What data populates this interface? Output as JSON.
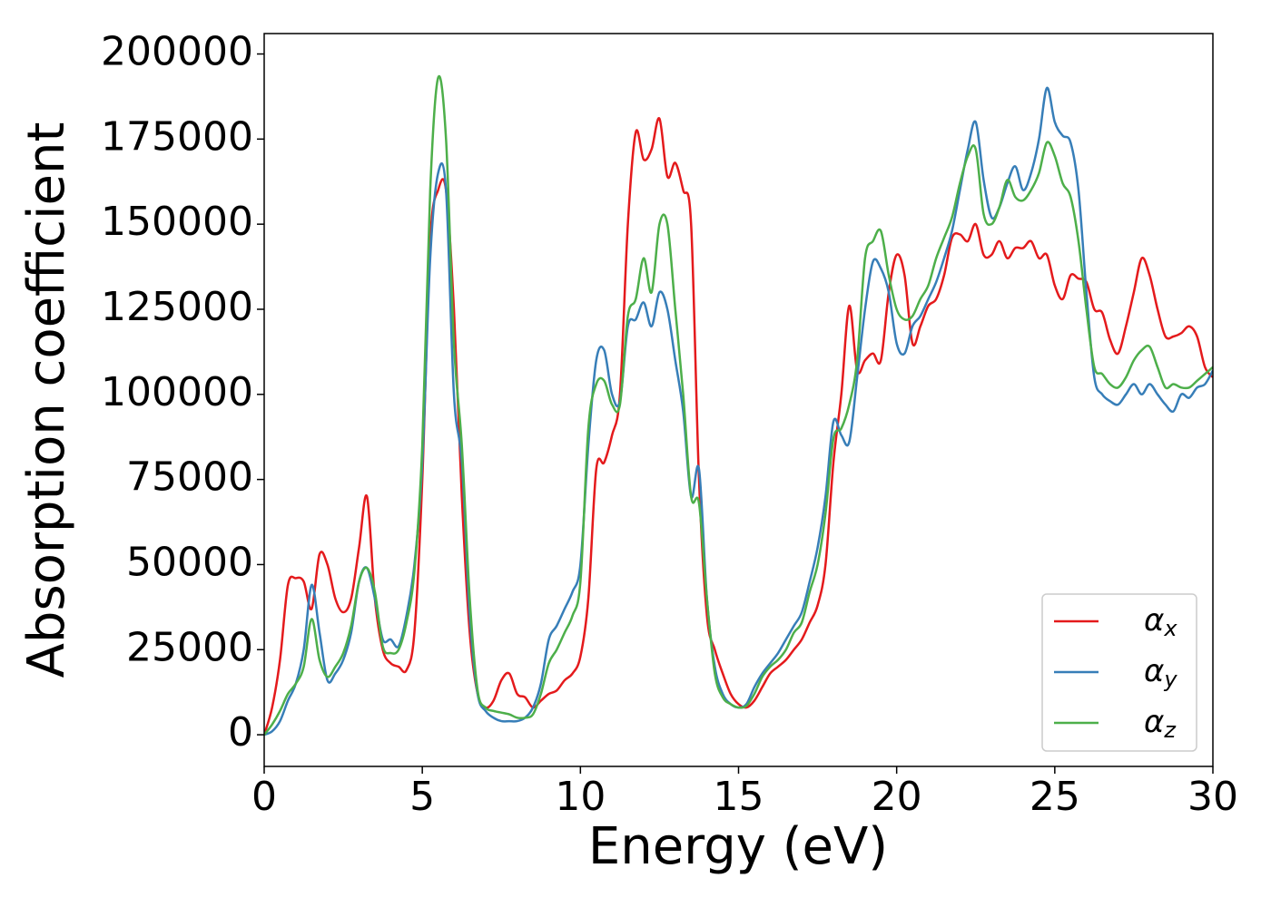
{
  "chart_data": {
    "type": "line",
    "xlabel": "Energy (eV)",
    "ylabel": "Absorption coefficient",
    "x": [
      0,
      0.25,
      0.5,
      0.75,
      1,
      1.25,
      1.5,
      1.75,
      2,
      2.25,
      2.5,
      2.75,
      3,
      3.25,
      3.5,
      3.75,
      4,
      4.25,
      4.5,
      4.75,
      5,
      5.25,
      5.5,
      5.75,
      6,
      6.25,
      6.5,
      6.75,
      7,
      7.25,
      7.5,
      7.75,
      8,
      8.25,
      8.5,
      8.75,
      9,
      9.25,
      9.5,
      9.75,
      10,
      10.25,
      10.5,
      10.75,
      11,
      11.25,
      11.5,
      11.75,
      12,
      12.25,
      12.5,
      12.75,
      13,
      13.25,
      13.5,
      13.75,
      14,
      14.25,
      14.5,
      14.75,
      15,
      15.25,
      15.5,
      15.75,
      16,
      16.25,
      16.5,
      16.75,
      17,
      17.25,
      17.5,
      17.75,
      18,
      18.25,
      18.5,
      18.75,
      19,
      19.25,
      19.5,
      19.75,
      20,
      20.25,
      20.5,
      20.75,
      21,
      21.25,
      21.5,
      21.75,
      22,
      22.25,
      22.5,
      22.75,
      23,
      23.25,
      23.5,
      23.75,
      24,
      24.25,
      24.5,
      24.75,
      25,
      25.25,
      25.5,
      25.75,
      26,
      26.25,
      26.5,
      26.75,
      27,
      27.25,
      27.5,
      27.75,
      28,
      28.25,
      28.5,
      28.75,
      29,
      29.25,
      29.5,
      29.75,
      30
    ],
    "series": [
      {
        "name": "αx",
        "color": "#e41a1c",
        "values": [
          0,
          8000,
          22000,
          44000,
          46000,
          45000,
          37000,
          53000,
          50000,
          40000,
          36000,
          40000,
          55000,
          70000,
          40000,
          25000,
          21000,
          20000,
          19000,
          30000,
          75000,
          145000,
          160000,
          160000,
          125000,
          70000,
          30000,
          12000,
          8000,
          10000,
          16000,
          18000,
          12000,
          11000,
          8000,
          10000,
          12000,
          13000,
          16000,
          18000,
          23000,
          40000,
          78000,
          80000,
          88000,
          100000,
          150000,
          177000,
          169000,
          172000,
          181000,
          164000,
          168000,
          160000,
          150000,
          75000,
          35000,
          25000,
          18000,
          12000,
          9000,
          8000,
          10000,
          14000,
          18000,
          20000,
          22000,
          25000,
          28000,
          33000,
          38000,
          50000,
          80000,
          100000,
          126000,
          107000,
          110000,
          112000,
          110000,
          130000,
          141000,
          135000,
          115000,
          120000,
          126000,
          128000,
          135000,
          146000,
          147000,
          145000,
          150000,
          141000,
          141000,
          145000,
          140000,
          143000,
          143000,
          145000,
          140000,
          141000,
          132000,
          128000,
          135000,
          134000,
          133000,
          125000,
          124000,
          116000,
          112000,
          120000,
          130000,
          140000,
          135000,
          125000,
          117000,
          117000,
          118000,
          120000,
          117000,
          108000,
          105000
        ]
      },
      {
        "name": "αy",
        "color": "#377eb8",
        "values": [
          0,
          1000,
          4000,
          10000,
          15000,
          25000,
          44000,
          30000,
          16000,
          18000,
          22000,
          30000,
          45000,
          49000,
          40000,
          28000,
          28000,
          26000,
          35000,
          50000,
          80000,
          140000,
          165000,
          160000,
          100000,
          80000,
          35000,
          12000,
          7000,
          5000,
          4000,
          4000,
          4000,
          5000,
          8000,
          15000,
          28000,
          32000,
          37000,
          42000,
          50000,
          85000,
          110000,
          113000,
          100000,
          98000,
          120000,
          122000,
          127000,
          120000,
          130000,
          125000,
          110000,
          95000,
          70000,
          78000,
          40000,
          20000,
          12000,
          9000,
          8000,
          9000,
          14000,
          18000,
          21000,
          24000,
          28000,
          32000,
          36000,
          45000,
          55000,
          70000,
          92000,
          88000,
          86000,
          105000,
          125000,
          139000,
          137000,
          130000,
          115000,
          112000,
          120000,
          123000,
          128000,
          133000,
          140000,
          148000,
          160000,
          172000,
          180000,
          163000,
          152000,
          155000,
          162000,
          167000,
          160000,
          165000,
          175000,
          190000,
          180000,
          176000,
          174000,
          160000,
          130000,
          105000,
          100000,
          98000,
          97000,
          100000,
          103000,
          100000,
          103000,
          100000,
          97000,
          95000,
          100000,
          99000,
          102000,
          103000,
          107000
        ]
      },
      {
        "name": "αz",
        "color": "#4daf4a",
        "values": [
          0,
          3000,
          7000,
          12000,
          15000,
          20000,
          34000,
          22000,
          17000,
          20000,
          24000,
          32000,
          45000,
          49000,
          42000,
          26000,
          24000,
          25000,
          33000,
          48000,
          85000,
          160000,
          193000,
          175000,
          115000,
          85000,
          40000,
          13000,
          8000,
          7000,
          6500,
          6000,
          5000,
          5000,
          6000,
          12000,
          21000,
          25000,
          30000,
          35000,
          45000,
          90000,
          103000,
          104000,
          97000,
          97000,
          123000,
          128000,
          140000,
          130000,
          150000,
          150000,
          125000,
          100000,
          70000,
          68000,
          40000,
          18000,
          11000,
          9000,
          8000,
          8500,
          12000,
          17000,
          20000,
          22000,
          25000,
          30000,
          33000,
          42000,
          50000,
          65000,
          87000,
          90000,
          97000,
          110000,
          140000,
          145000,
          148000,
          135000,
          125000,
          122000,
          123000,
          128000,
          132000,
          140000,
          146000,
          152000,
          162000,
          170000,
          172000,
          153000,
          150000,
          155000,
          163000,
          158000,
          157000,
          160000,
          165000,
          174000,
          170000,
          162000,
          158000,
          145000,
          125000,
          108000,
          106000,
          103000,
          102000,
          105000,
          110000,
          113000,
          114000,
          108000,
          102000,
          103000,
          102000,
          102000,
          104000,
          106000,
          108000
        ]
      }
    ],
    "xlim": [
      0,
      30
    ],
    "xticks": [
      0,
      5,
      10,
      15,
      20,
      25,
      30
    ],
    "ylim": [
      -9300,
      206000
    ],
    "yticks": [
      0,
      25000,
      50000,
      75000,
      100000,
      125000,
      150000,
      175000,
      200000
    ],
    "legend": "lower right",
    "grid": false
  }
}
